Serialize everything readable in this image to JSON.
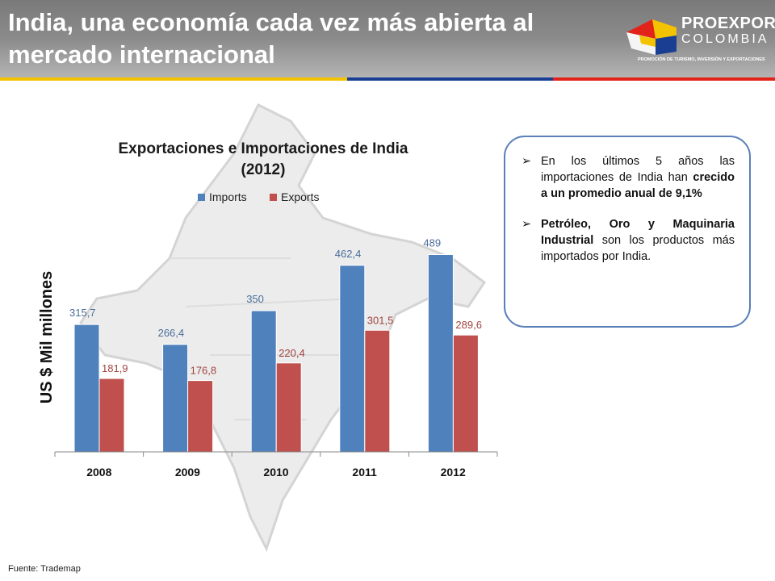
{
  "slide": {
    "title": "India, una economía cada vez más abierta al mercado internacional",
    "source": "Fuente: Trademap"
  },
  "logo": {
    "name": "PROEXPORT",
    "country": "COLOMBIA",
    "tagline": "PROMOCIÓN DE TURISMO, INVERSIÓN Y EXPORTACIONES"
  },
  "info_box": {
    "bullet_1": {
      "arrow": "➢",
      "text_a": "En los últimos 5 años las importaciones de India han ",
      "text_b": "crecido a un promedio anual de 9,1%"
    },
    "bullet_2": {
      "arrow": "➢",
      "text_a": "Petróleo, Oro y Maquinaria Industrial",
      "text_b": " son los productos más importados por India."
    }
  },
  "colors": {
    "imports": "#4f81bd",
    "exports": "#c0504d",
    "imports_label": "#4a6d9a",
    "exports_label": "#a0443f"
  },
  "chart_data": {
    "type": "bar",
    "title": "Exportaciones e Importaciones de India (2012)",
    "title_lines": [
      "Exportaciones e Importaciones de India",
      "(2012)"
    ],
    "ylabel": "US $ Mil millones",
    "xlabel": "",
    "categories": [
      "2008",
      "2009",
      "2010",
      "2011",
      "2012"
    ],
    "series": [
      {
        "name": "Imports",
        "values": [
          315.7,
          266.4,
          350,
          462.4,
          489
        ],
        "labels": [
          "315,7",
          "266,4",
          "350",
          "462,4",
          "489"
        ]
      },
      {
        "name": "Exports",
        "values": [
          181.9,
          176.8,
          220.4,
          301.5,
          289.6
        ],
        "labels": [
          "181,9",
          "176,8",
          "220,4",
          "301,5",
          "289,6"
        ]
      }
    ],
    "ylim": [
      0,
      520
    ],
    "grid": false,
    "legend": "top"
  }
}
